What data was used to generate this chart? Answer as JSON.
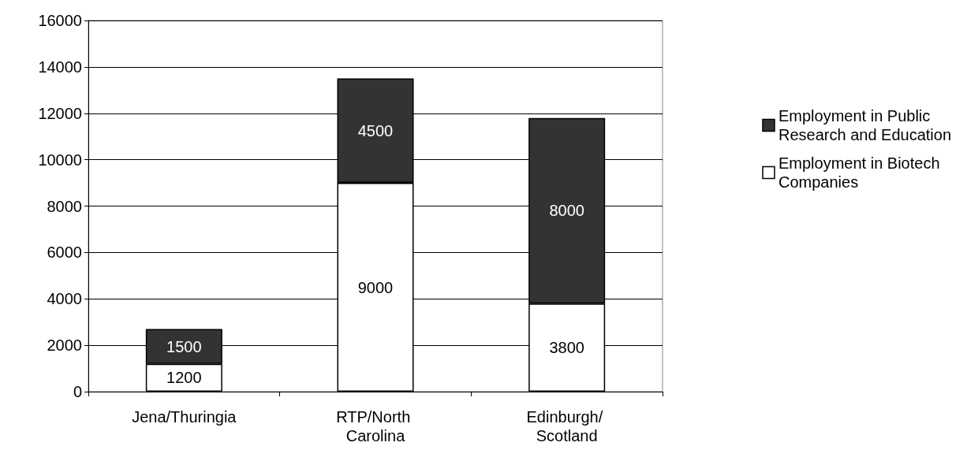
{
  "chart_data": {
    "type": "bar",
    "stacked": true,
    "categories": [
      "Jena/Thuringia",
      "RTP/North Carolina",
      "Edinburgh/ Scotland"
    ],
    "series": [
      {
        "name": "Employment in Biotech Companies",
        "color": "#ffffff",
        "values": [
          1200,
          9000,
          3800
        ]
      },
      {
        "name": "Employment in Public Research and Education",
        "color": "#333333",
        "values": [
          1500,
          4500,
          8000
        ]
      }
    ],
    "ylim": [
      0,
      16000
    ],
    "yticks": [
      0,
      2000,
      4000,
      6000,
      8000,
      10000,
      12000,
      14000,
      16000
    ],
    "grid": "y",
    "legend": "right",
    "data_labels": true
  }
}
